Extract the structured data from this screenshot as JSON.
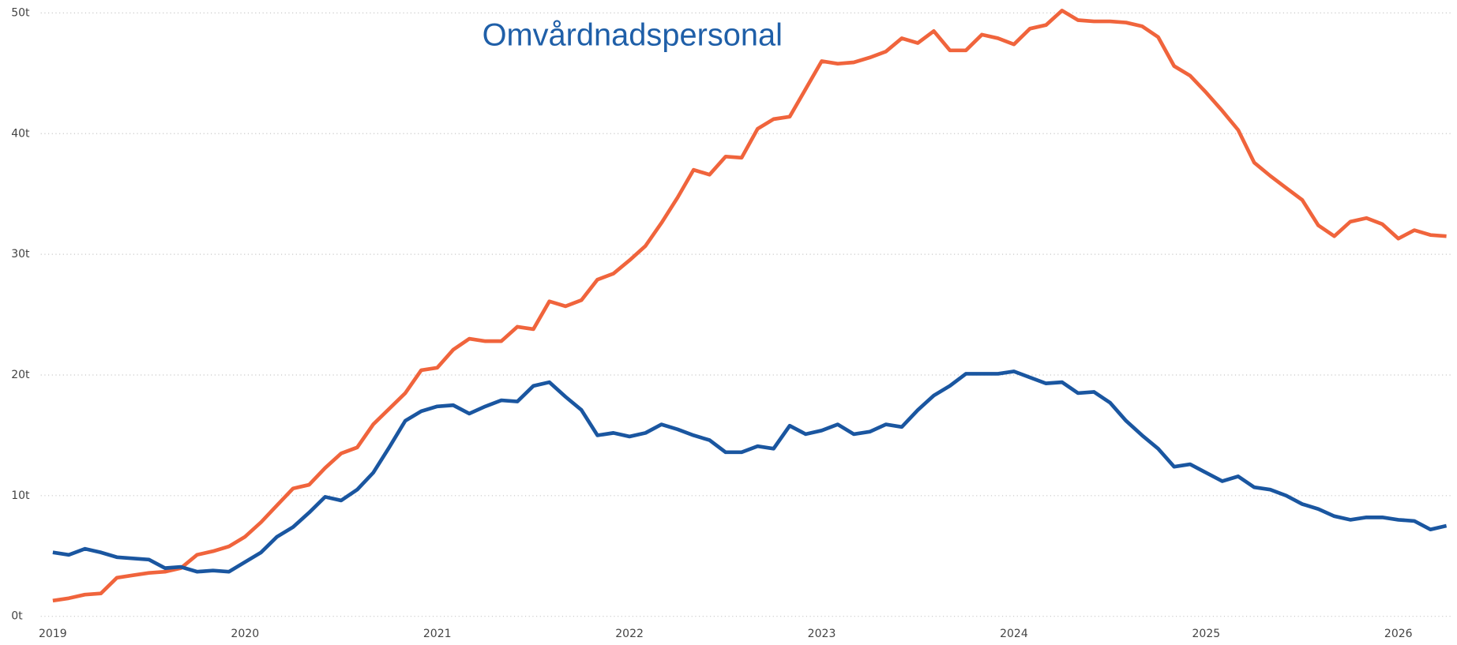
{
  "chart_data": {
    "type": "line",
    "title": "Omvårdnadspersonal",
    "title_color": "#1f5fa8",
    "categories": [
      "2019",
      null,
      null,
      null,
      null,
      null,
      null,
      null,
      null,
      null,
      null,
      null,
      "2020",
      null,
      null,
      null,
      null,
      null,
      null,
      null,
      null,
      null,
      null,
      null,
      "2021",
      null,
      null,
      null,
      null,
      null,
      null,
      null,
      null,
      null,
      null,
      null,
      "2022",
      null,
      null,
      null,
      null,
      null,
      null,
      null,
      null,
      null,
      null,
      null,
      "2023",
      null,
      null,
      null,
      null,
      null,
      null,
      null,
      null,
      null,
      null,
      null,
      "2024",
      null,
      null,
      null,
      null,
      null,
      null,
      null,
      null,
      null,
      null,
      null,
      "2025",
      null,
      null,
      null,
      null,
      null,
      null,
      null,
      null,
      null,
      null,
      null,
      "2026",
      null,
      null,
      null
    ],
    "series": [
      {
        "color": "#f0643c",
        "values": [
          1.3,
          1.5,
          1.8,
          1.9,
          3.2,
          3.4,
          3.6,
          3.7,
          4.0,
          5.1,
          5.4,
          5.8,
          6.6,
          7.8,
          9.2,
          10.6,
          10.9,
          12.3,
          13.5,
          14.0,
          15.9,
          17.2,
          18.5,
          20.4,
          20.6,
          22.1,
          23.0,
          22.8,
          22.8,
          24.0,
          23.8,
          26.1,
          25.7,
          26.2,
          27.9,
          28.4,
          29.5,
          30.7,
          32.6,
          34.7,
          37.0,
          36.6,
          38.1,
          38.0,
          40.4,
          41.2,
          41.4,
          43.7,
          46.0,
          45.8,
          45.9,
          46.3,
          46.8,
          47.9,
          47.5,
          48.5,
          46.9,
          46.9,
          48.2,
          47.9,
          47.4,
          48.7,
          49.0,
          50.2,
          49.4,
          49.3,
          49.3,
          49.2,
          48.9,
          48.0,
          45.6,
          44.8,
          43.4,
          41.9,
          40.3,
          37.6,
          36.5,
          35.5,
          34.5,
          32.4,
          31.5,
          32.7,
          33.0,
          32.5,
          31.3,
          32.0,
          31.6,
          31.5
        ]
      },
      {
        "color": "#1a56a0",
        "values": [
          5.3,
          5.1,
          5.6,
          5.3,
          4.9,
          4.8,
          4.7,
          4.0,
          4.1,
          3.7,
          3.8,
          3.7,
          4.5,
          5.3,
          6.6,
          7.4,
          8.6,
          9.9,
          9.6,
          10.5,
          11.9,
          14.0,
          16.2,
          17.0,
          17.4,
          17.5,
          16.8,
          17.4,
          17.9,
          17.8,
          19.1,
          19.4,
          18.2,
          17.1,
          15.0,
          15.2,
          14.9,
          15.2,
          15.9,
          15.5,
          15.0,
          14.6,
          13.6,
          13.6,
          14.1,
          13.9,
          15.8,
          15.1,
          15.4,
          15.9,
          15.1,
          15.3,
          15.9,
          15.7,
          17.1,
          18.3,
          19.1,
          20.1,
          20.1,
          20.1,
          20.3,
          19.8,
          19.3,
          19.4,
          18.5,
          18.6,
          17.7,
          16.2,
          15.0,
          13.9,
          12.4,
          12.6,
          11.9,
          11.2,
          11.6,
          10.7,
          10.5,
          10.0,
          9.3,
          8.9,
          8.3,
          8.0,
          8.2,
          8.2,
          8.0,
          7.9,
          7.2,
          7.5
        ]
      }
    ],
    "ylim": [
      0,
      50
    ],
    "yticks": [
      {
        "value": 0,
        "label": "0t"
      },
      {
        "value": 10,
        "label": "10t"
      },
      {
        "value": 20,
        "label": "20t"
      },
      {
        "value": 30,
        "label": "30t"
      },
      {
        "value": 40,
        "label": "40t"
      },
      {
        "value": 50,
        "label": "50t"
      }
    ],
    "grid": true
  }
}
